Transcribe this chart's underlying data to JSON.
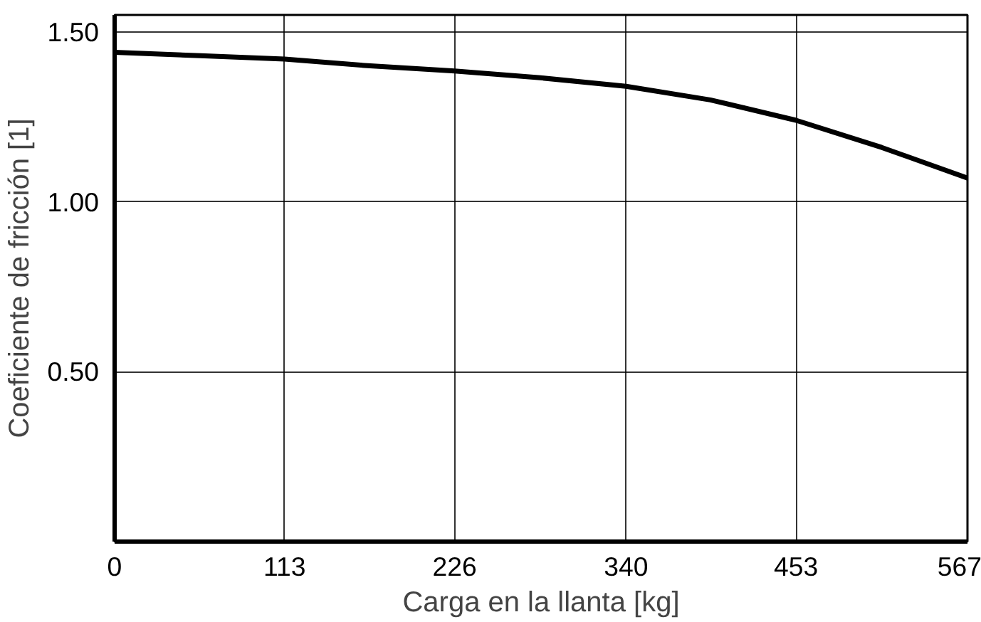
{
  "chart_data": {
    "type": "line",
    "xlabel": "Carga en la llanta [kg]",
    "ylabel": "Coeficiente de fricción [1]",
    "x": [
      0,
      57,
      113,
      170,
      226,
      283,
      340,
      396,
      453,
      510,
      567
    ],
    "series": [
      {
        "color": "#000000",
        "values": [
          1.44,
          1.43,
          1.42,
          1.4,
          1.385,
          1.365,
          1.34,
          1.3,
          1.24,
          1.16,
          1.07
        ]
      }
    ],
    "xlim": [
      0,
      567
    ],
    "xticks": [
      0,
      113,
      226,
      340,
      453,
      567
    ],
    "ylim": [
      0,
      1.55
    ],
    "yticks": [
      {
        "value": 0.5,
        "label": "0.50"
      },
      {
        "value": 1.0,
        "label": "1.00"
      },
      {
        "value": 1.5,
        "label": "1.50"
      }
    ],
    "grid": true,
    "marker": "none",
    "line_style": "solid"
  }
}
